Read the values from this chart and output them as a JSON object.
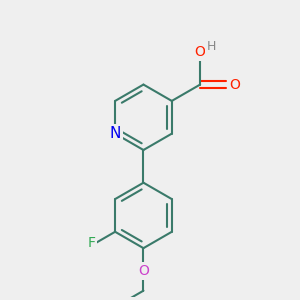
{
  "background_color": "#efefef",
  "bond_color": "#3a7a6a",
  "bond_width": 1.5,
  "atom_colors": {
    "N": "#0000ee",
    "O": "#ff2200",
    "O_methoxy": "#cc44cc",
    "F": "#33aa55",
    "H": "#888888",
    "C": "#3a7a6a"
  },
  "font_size": 10,
  "figsize": [
    3.0,
    3.0
  ],
  "dpi": 100,
  "bg": "#efefef"
}
